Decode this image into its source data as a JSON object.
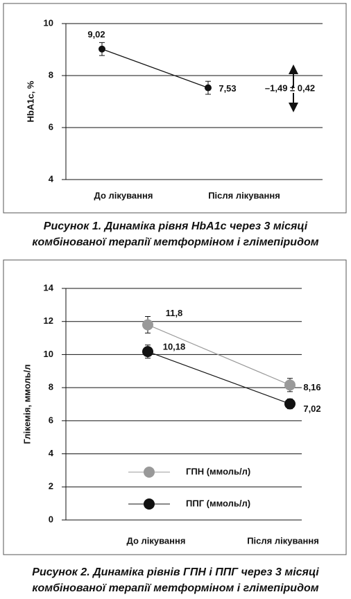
{
  "chart_data": [
    {
      "type": "line",
      "ylabel": "HbA1c, %",
      "categories": [
        "До лікування",
        "Після лікування"
      ],
      "values": [
        9.02,
        7.53
      ],
      "value_labels": [
        "9,02",
        "7,53"
      ],
      "errors": [
        0.25,
        0.25
      ],
      "color": "#111111",
      "ylim": [
        4,
        10
      ],
      "yticks": [
        4,
        6,
        8,
        10
      ],
      "grid": true,
      "annotation": "–1,49 ± 0,42",
      "caption": [
        "Рисунок 1. Динаміка рівня HbA1c через 3 місяці",
        "комбінованої терапії метформіном і глімепіридом"
      ]
    },
    {
      "type": "line",
      "ylabel": "Глікемія, ммоль/л",
      "categories": [
        "До лікування",
        "Після лікування"
      ],
      "series": [
        {
          "name": "ГПН (ммоль/л)",
          "color": "#999999",
          "values": [
            11.8,
            8.16
          ],
          "value_labels": [
            "11,8",
            "8,16"
          ],
          "errors": [
            0.5,
            0.4
          ]
        },
        {
          "name": "ППГ (ммоль/л)",
          "color": "#111111",
          "values": [
            10.18,
            7.02
          ],
          "value_labels": [
            "10,18",
            "7,02"
          ],
          "errors": [
            0.4,
            0.3
          ]
        }
      ],
      "ylim": [
        0,
        14
      ],
      "yticks": [
        0,
        2,
        4,
        6,
        8,
        10,
        12,
        14
      ],
      "grid": true,
      "legend": "bottom-left",
      "caption": [
        "Рисунок 2. Динаміка рівнів ГПН і ППГ через 3 місяці",
        "комбінованої терапії метформіном і глімепіридом"
      ]
    }
  ]
}
